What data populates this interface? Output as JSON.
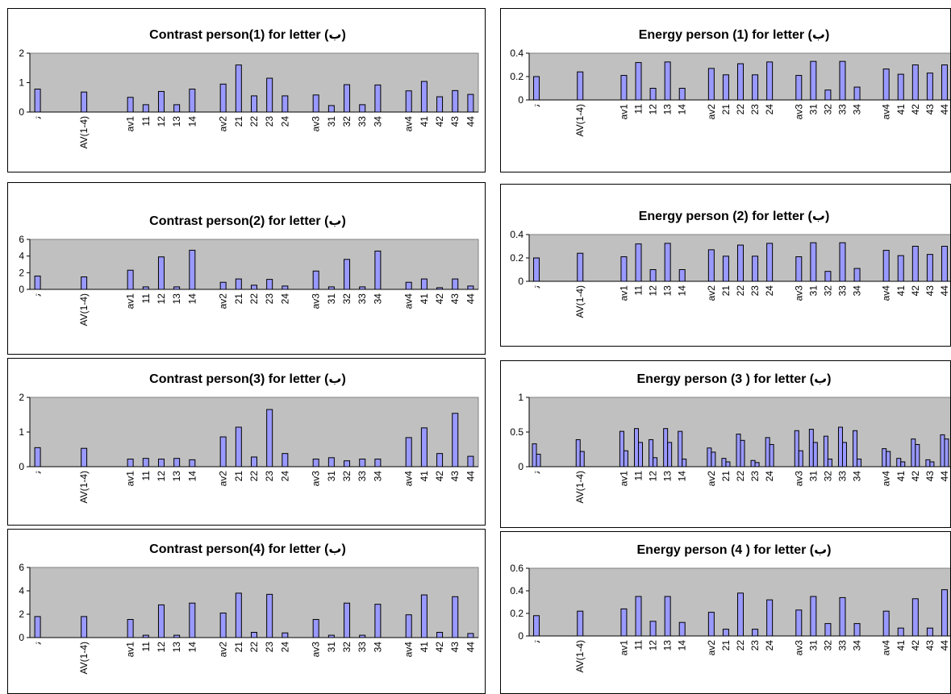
{
  "chart_data": [
    {
      "type": "bar",
      "title": "Contrast  person(1) for letter (ب)",
      "categories": [
        "ﺗ",
        "AV(1-4)",
        "av1",
        "11",
        "12",
        "13",
        "14",
        "av2",
        "21",
        "22",
        "23",
        "24",
        "av3",
        "31",
        "32",
        "33",
        "34",
        "av4",
        "41",
        "42",
        "43",
        "44"
      ],
      "values": [
        0.78,
        0.68,
        0.5,
        0.25,
        0.7,
        0.25,
        0.78,
        0.95,
        1.6,
        0.55,
        1.15,
        0.55,
        0.58,
        0.22,
        0.93,
        0.25,
        0.92,
        0.72,
        1.04,
        0.52,
        0.73,
        0.6
      ],
      "ylim": [
        0,
        2
      ],
      "yticks": [
        "0",
        "1",
        "2"
      ],
      "xlabel": "",
      "ylabel": ""
    },
    {
      "type": "bar",
      "title": "Contrast  person(2) for letter (ب)",
      "categories": [
        "ﺗ",
        "AV(1-4)",
        "av1",
        "11",
        "12",
        "13",
        "14",
        "av2",
        "21",
        "22",
        "23",
        "24",
        "av3",
        "31",
        "32",
        "33",
        "34",
        "av4",
        "41",
        "42",
        "43",
        "44"
      ],
      "values": [
        1.6,
        1.5,
        2.3,
        0.3,
        3.9,
        0.3,
        4.7,
        0.85,
        1.25,
        0.5,
        1.2,
        0.4,
        2.2,
        0.3,
        3.6,
        0.3,
        4.6,
        0.85,
        1.25,
        0.2,
        1.25,
        0.4
      ],
      "ylim": [
        0,
        6
      ],
      "yticks": [
        "0",
        "2",
        "4",
        "6"
      ],
      "xlabel": "",
      "ylabel": ""
    },
    {
      "type": "bar",
      "title": "Contrast  person(3) for letter (ب)",
      "categories": [
        "ﺗ",
        "AV(1-4)",
        "av1",
        "11",
        "12",
        "13",
        "14",
        "av2",
        "21",
        "22",
        "23",
        "24",
        "av3",
        "31",
        "32",
        "33",
        "34",
        "av4",
        "41",
        "42",
        "43",
        "44"
      ],
      "values": [
        0.55,
        0.53,
        0.22,
        0.24,
        0.22,
        0.24,
        0.2,
        0.86,
        1.14,
        0.28,
        1.65,
        0.38,
        0.22,
        0.26,
        0.17,
        0.22,
        0.22,
        0.84,
        1.12,
        0.38,
        1.54,
        0.3
      ],
      "ylim": [
        0,
        2
      ],
      "yticks": [
        "0",
        "1",
        "2"
      ],
      "xlabel": "",
      "ylabel": ""
    },
    {
      "type": "bar",
      "title": "Contrast  person(4) for letter (ب)",
      "categories": [
        "ﺗ",
        "AV(1-4)",
        "av1",
        "11",
        "12",
        "13",
        "14",
        "av2",
        "21",
        "22",
        "23",
        "24",
        "av3",
        "31",
        "32",
        "33",
        "34",
        "av4",
        "41",
        "42",
        "43",
        "44"
      ],
      "values": [
        1.8,
        1.8,
        1.55,
        0.2,
        2.8,
        0.2,
        2.95,
        2.1,
        3.8,
        0.45,
        3.7,
        0.4,
        1.55,
        0.2,
        2.95,
        0.2,
        2.85,
        1.95,
        3.65,
        0.45,
        3.5,
        0.35
      ],
      "ylim": [
        0,
        6
      ],
      "yticks": [
        "0",
        "2",
        "4",
        "6"
      ],
      "xlabel": "",
      "ylabel": ""
    },
    {
      "type": "bar",
      "title": "Energy person (1) for letter (ب)",
      "categories": [
        "ﺗ",
        "AV(1-4)",
        "av1",
        "11",
        "12",
        "13",
        "14",
        "av2",
        "21",
        "22",
        "23",
        "24",
        "av3",
        "31",
        "32",
        "33",
        "34",
        "av4",
        "41",
        "42",
        "43",
        "44"
      ],
      "values": [
        0.2,
        0.24,
        0.21,
        0.32,
        0.1,
        0.325,
        0.1,
        0.27,
        0.215,
        0.31,
        0.215,
        0.325,
        0.21,
        0.33,
        0.085,
        0.33,
        0.11,
        0.265,
        0.22,
        0.3,
        0.23,
        0.3
      ],
      "ylim": [
        0,
        0.4
      ],
      "yticks": [
        "0",
        "0.2",
        "0.4"
      ],
      "xlabel": "",
      "ylabel": ""
    },
    {
      "type": "bar",
      "title": "Energy person (2) for letter (ب)",
      "categories": [
        "ﺗ",
        "AV(1-4)",
        "av1",
        "11",
        "12",
        "13",
        "14",
        "av2",
        "21",
        "22",
        "23",
        "24",
        "av3",
        "31",
        "32",
        "33",
        "34",
        "av4",
        "41",
        "42",
        "43",
        "44"
      ],
      "values": [
        0.2,
        0.24,
        0.21,
        0.32,
        0.1,
        0.325,
        0.1,
        0.27,
        0.215,
        0.31,
        0.215,
        0.325,
        0.21,
        0.33,
        0.085,
        0.33,
        0.11,
        0.265,
        0.22,
        0.3,
        0.23,
        0.3
      ],
      "ylim": [
        0,
        0.4
      ],
      "yticks": [
        "0",
        "0.2",
        "0.4"
      ],
      "xlabel": "",
      "ylabel": ""
    },
    {
      "type": "bar",
      "title": "Energy person (3 ) for letter (ب)",
      "categories": [
        "ﺗ",
        "AV(1-4)",
        "av1",
        "11",
        "12",
        "13",
        "14",
        "av2",
        "21",
        "22",
        "23",
        "24",
        "av3",
        "31",
        "32",
        "33",
        "34",
        "av4",
        "41",
        "42",
        "43",
        "44"
      ],
      "series": [
        {
          "values": [
            0.33,
            0.39,
            0.51,
            0.55,
            0.39,
            0.55,
            0.51,
            0.27,
            0.12,
            0.47,
            0.09,
            0.42,
            0.52,
            0.54,
            0.44,
            0.57,
            0.52,
            0.26,
            0.12,
            0.4,
            0.1,
            0.46
          ]
        },
        {
          "values": [
            0.18,
            0.22,
            0.23,
            0.35,
            0.13,
            0.35,
            0.11,
            0.21,
            0.07,
            0.38,
            0.06,
            0.32,
            0.23,
            0.35,
            0.11,
            0.35,
            0.11,
            0.22,
            0.07,
            0.32,
            0.07,
            0.4
          ]
        }
      ],
      "ylim": [
        0,
        1
      ],
      "yticks": [
        "0",
        "0.5",
        "1"
      ],
      "xlabel": "",
      "ylabel": ""
    },
    {
      "type": "bar",
      "title": "Energy person (4 ) for letter (ب)",
      "categories": [
        "ﺗ",
        "AV(1-4)",
        "av1",
        "11",
        "12",
        "13",
        "14",
        "av2",
        "21",
        "22",
        "23",
        "24",
        "av3",
        "31",
        "32",
        "33",
        "34",
        "av4",
        "41",
        "42",
        "43",
        "44"
      ],
      "values": [
        0.18,
        0.22,
        0.24,
        0.35,
        0.13,
        0.35,
        0.12,
        0.21,
        0.06,
        0.38,
        0.06,
        0.32,
        0.23,
        0.35,
        0.11,
        0.34,
        0.11,
        0.22,
        0.07,
        0.33,
        0.07,
        0.41
      ],
      "ylim": [
        0,
        0.6
      ],
      "yticks": [
        "0",
        "0.2",
        "0.4",
        "0.6"
      ],
      "xlabel": "",
      "ylabel": ""
    }
  ],
  "colors": {
    "bar_fill": "#9999ff",
    "bar_stroke": "#000000",
    "plot_bg": "#c0c0c0"
  }
}
